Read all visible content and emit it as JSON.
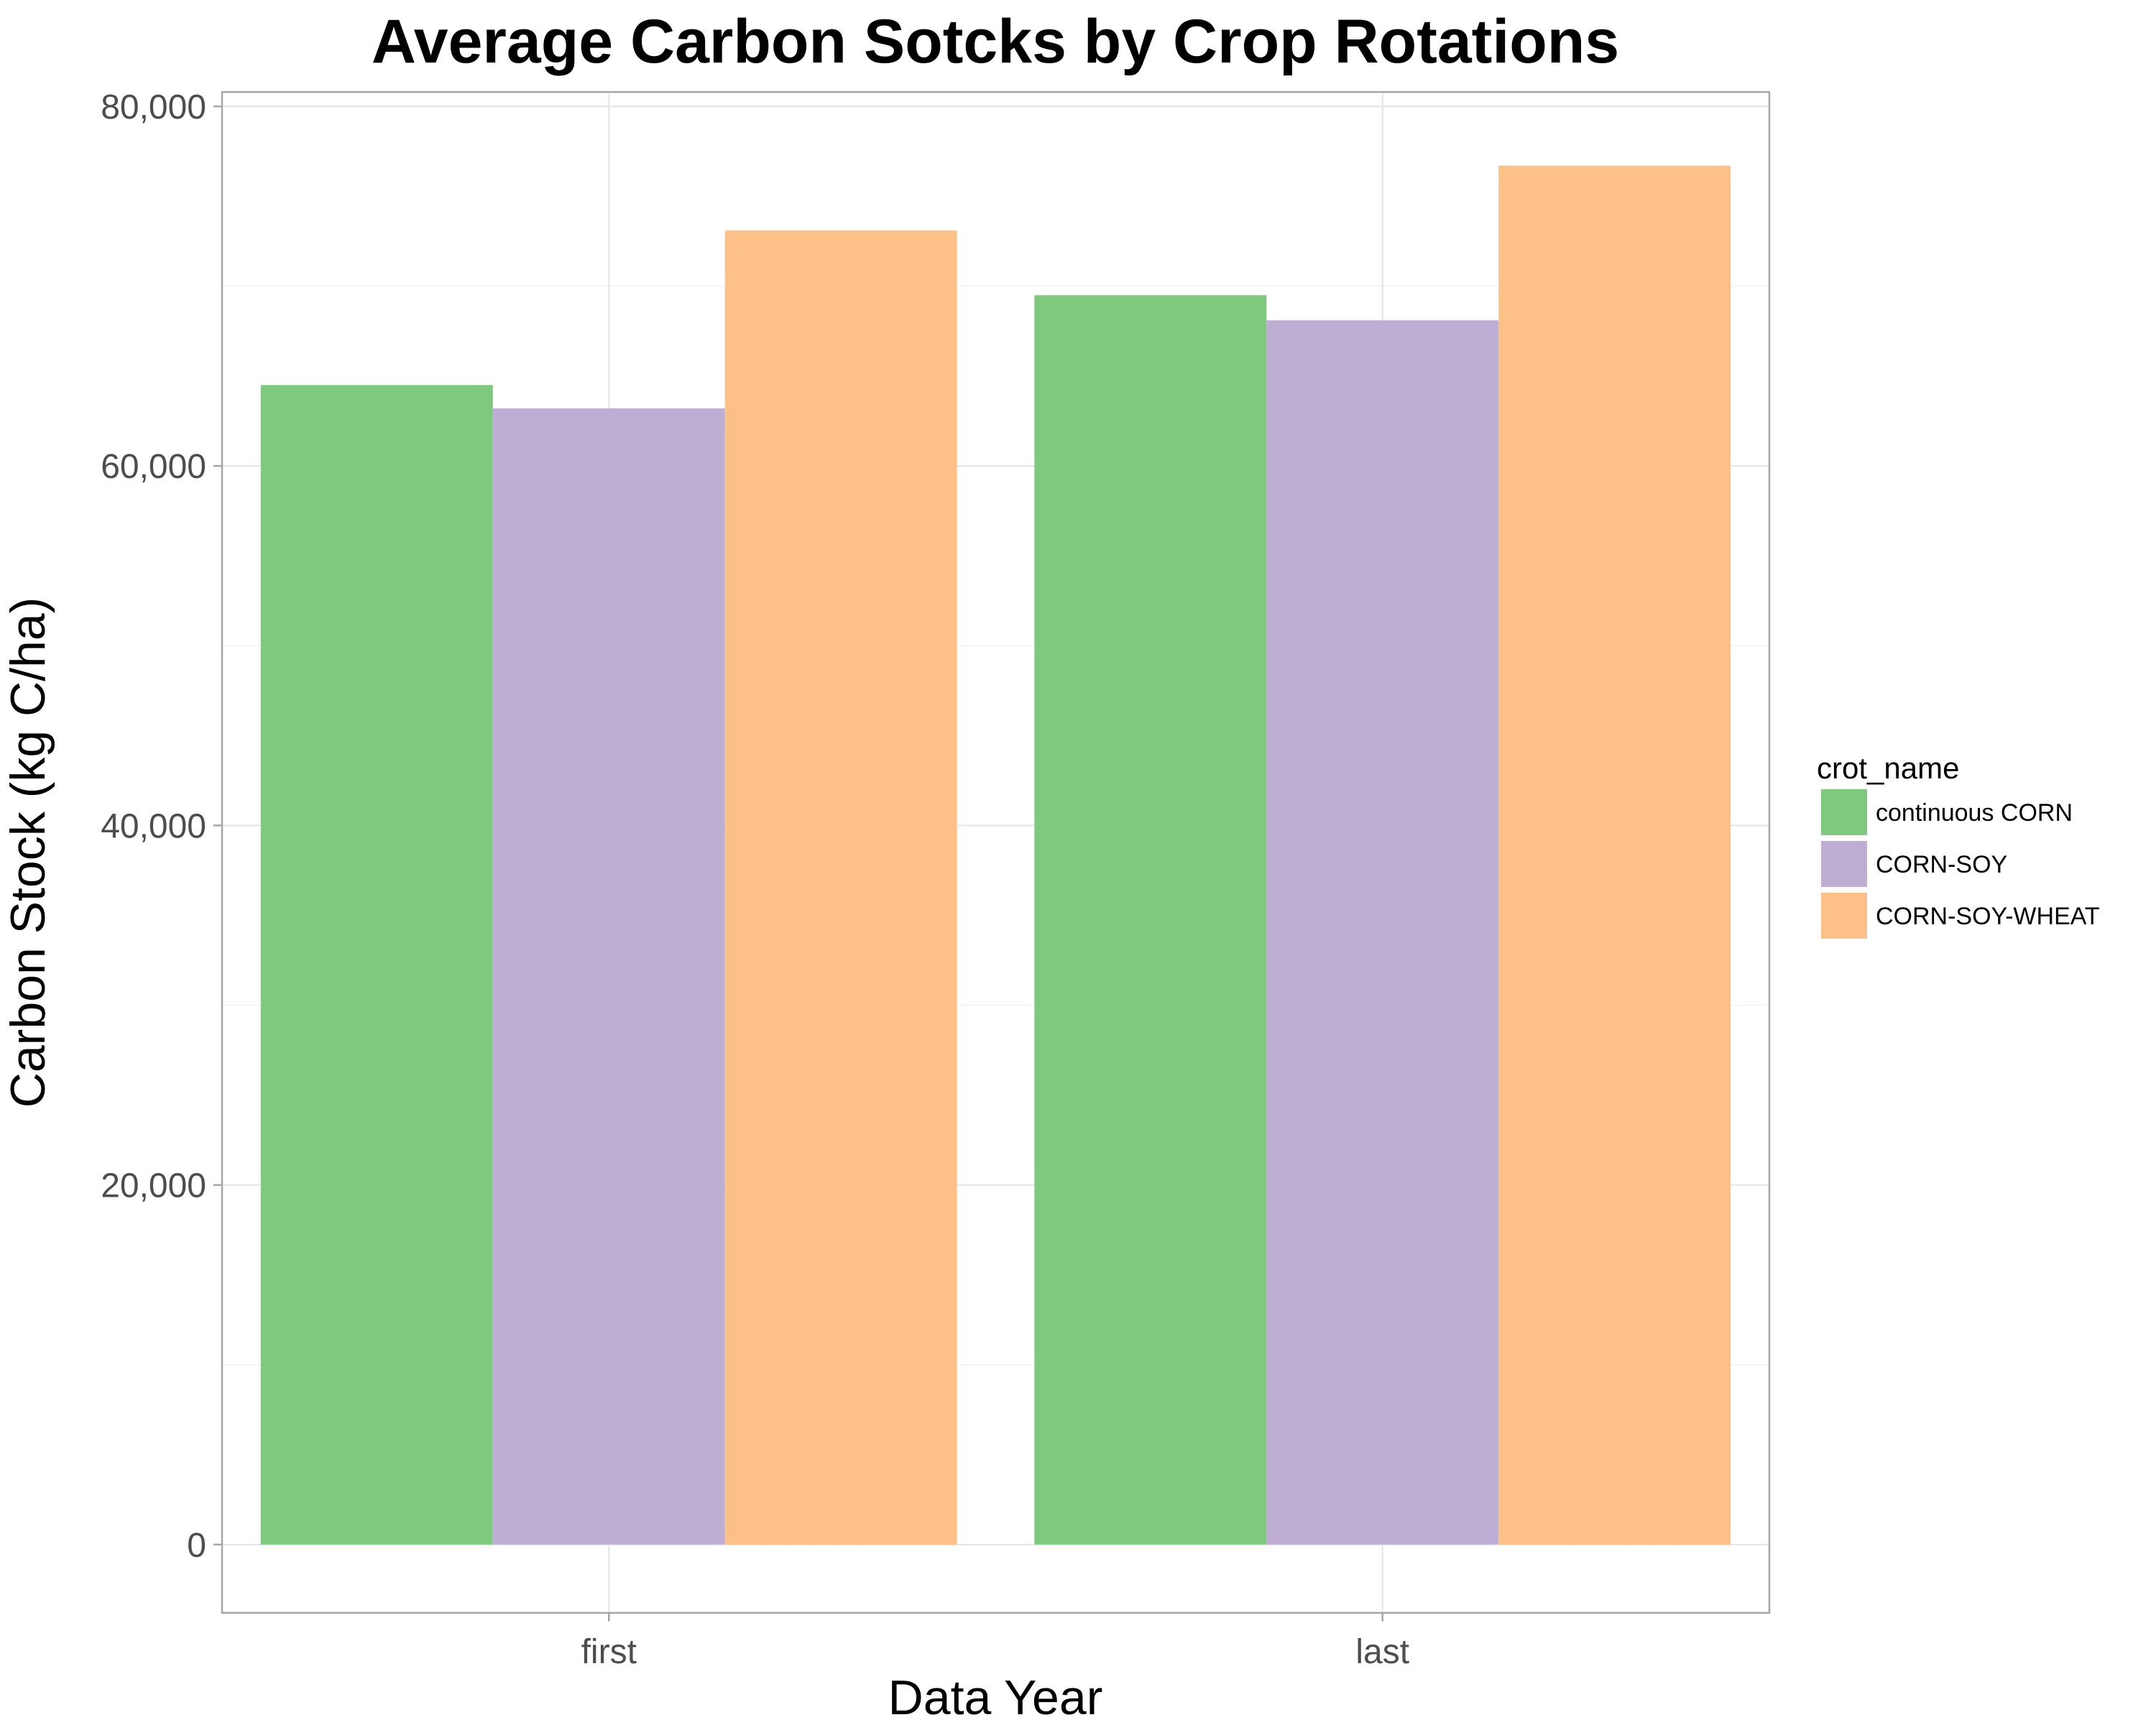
{
  "chart_data": {
    "type": "bar",
    "title": "Average Carbon Sotcks by Crop Rotations",
    "xlabel": "Data Year",
    "ylabel": "Carbon Stock (kg C/ha)",
    "categories": [
      "first",
      "last"
    ],
    "ylim": [
      -3800,
      80800
    ],
    "yticks": [
      0,
      20000,
      40000,
      60000,
      80000
    ],
    "ytick_labels": [
      "0",
      "20,000",
      "40,000",
      "60,000",
      "80,000"
    ],
    "grid": true,
    "legend_position": "right",
    "legend_title": "crot_name",
    "series": [
      {
        "name": "continuous CORN",
        "color": "#7fc97f",
        "values": [
          64500,
          69500
        ]
      },
      {
        "name": "CORN-SOY",
        "color": "#beaed4",
        "values": [
          63200,
          68100
        ]
      },
      {
        "name": "CORN-SOY-WHEAT",
        "color": "#fdc086",
        "values": [
          73100,
          76700
        ]
      }
    ]
  }
}
